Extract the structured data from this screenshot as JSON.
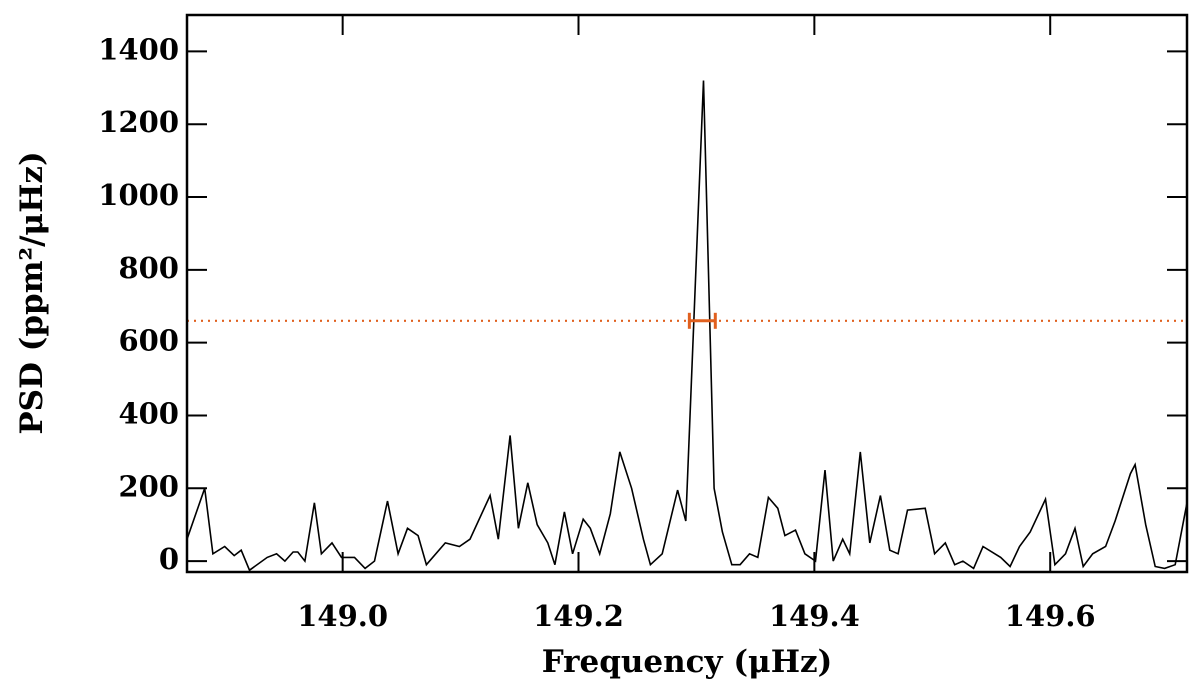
{
  "chart_data": {
    "type": "line",
    "xlabel": "Frequency (μHz)",
    "ylabel": "PSD (ppm²/μHz)",
    "color": "#000000",
    "x": [
      148.868,
      148.883,
      148.89,
      148.9,
      148.908,
      148.914,
      148.921,
      148.936,
      148.944,
      148.951,
      148.958,
      148.962,
      148.968,
      148.976,
      148.982,
      148.991,
      148.999,
      149.01,
      149.019,
      149.027,
      149.038,
      149.047,
      149.055,
      149.064,
      149.071,
      149.087,
      149.099,
      149.108,
      149.125,
      149.132,
      149.142,
      149.149,
      149.157,
      149.165,
      149.174,
      149.18,
      149.188,
      149.195,
      149.204,
      149.21,
      149.218,
      149.227,
      149.235,
      149.245,
      149.255,
      149.261,
      149.271,
      149.284,
      149.291,
      149.306,
      149.315,
      149.322,
      149.33,
      149.337,
      149.345,
      149.352,
      149.361,
      149.369,
      149.375,
      149.384,
      149.392,
      149.401,
      149.409,
      149.416,
      149.424,
      149.43,
      149.439,
      149.447,
      149.456,
      149.464,
      149.471,
      149.479,
      149.494,
      149.502,
      149.511,
      149.519,
      149.526,
      149.535,
      149.543,
      149.558,
      149.566,
      149.574,
      149.583,
      149.596,
      149.604,
      149.613,
      149.621,
      149.628,
      149.636,
      149.647,
      149.655,
      149.668,
      149.672,
      149.681,
      149.689,
      149.697,
      149.706,
      149.716
    ],
    "values": [
      60,
      200,
      20,
      40,
      15,
      30,
      -25,
      10,
      20,
      0,
      25,
      25,
      0,
      160,
      20,
      50,
      10,
      10,
      -20,
      0,
      165,
      20,
      90,
      70,
      -10,
      50,
      40,
      60,
      180,
      60,
      345,
      90,
      215,
      100,
      50,
      -10,
      135,
      20,
      115,
      90,
      20,
      130,
      300,
      200,
      60,
      -10,
      20,
      195,
      110,
      1320,
      200,
      80,
      -10,
      -10,
      20,
      10,
      175,
      145,
      70,
      85,
      20,
      0,
      250,
      0,
      60,
      20,
      300,
      50,
      180,
      30,
      20,
      140,
      145,
      20,
      50,
      -10,
      0,
      -20,
      40,
      10,
      -15,
      40,
      80,
      170,
      -10,
      20,
      90,
      -15,
      20,
      40,
      110,
      240,
      265,
      100,
      -15,
      -20,
      -10,
      160
    ],
    "xlim": [
      148.868,
      149.716
    ],
    "ylim": [
      -30,
      1500
    ],
    "xticks": [
      {
        "value": 149.0,
        "label": "149.0"
      },
      149.2,
      149.4,
      149.6
    ],
    "yticks": [
      0,
      200,
      400,
      600,
      800,
      1000,
      1200,
      1400
    ],
    "hline": {
      "value": 660,
      "color": "#e0601f"
    },
    "errorbar": {
      "x": 149.305,
      "xerr": 0.011,
      "y": 660,
      "color": "#e0601f"
    }
  }
}
